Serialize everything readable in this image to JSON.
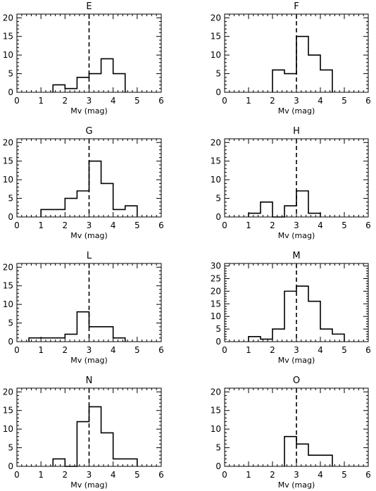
{
  "chart_data": [
    {
      "type": "bar",
      "title": "E",
      "xlabel": "Mv (mag)",
      "ylabel": "",
      "xlim": [
        0,
        6
      ],
      "ylim": [
        0,
        21
      ],
      "xticks": [
        0,
        1,
        2,
        3,
        4,
        5,
        6
      ],
      "yticks": [
        0,
        5,
        10,
        15,
        20
      ],
      "bin_width": 0.5,
      "bin_starts": [
        1.5,
        2.0,
        2.5,
        3.0,
        3.5,
        4.0
      ],
      "values": [
        2,
        1,
        4,
        5,
        9,
        5
      ],
      "reference_line_x": 3
    },
    {
      "type": "bar",
      "title": "F",
      "xlabel": "Mv (mag)",
      "ylabel": "",
      "xlim": [
        0,
        6
      ],
      "ylim": [
        0,
        21
      ],
      "xticks": [
        0,
        1,
        2,
        3,
        4,
        5,
        6
      ],
      "yticks": [
        0,
        5,
        10,
        15,
        20
      ],
      "bin_width": 0.5,
      "bin_starts": [
        2.0,
        2.5,
        3.0,
        3.5,
        4.0
      ],
      "values": [
        6,
        5,
        15,
        10,
        6
      ],
      "reference_line_x": 3
    },
    {
      "type": "bar",
      "title": "G",
      "xlabel": "Mv (mag)",
      "ylabel": "",
      "xlim": [
        0,
        6
      ],
      "ylim": [
        0,
        21
      ],
      "xticks": [
        0,
        1,
        2,
        3,
        4,
        5,
        6
      ],
      "yticks": [
        0,
        5,
        10,
        15,
        20
      ],
      "bin_width": 0.5,
      "bin_starts": [
        1.0,
        1.5,
        2.0,
        2.5,
        3.0,
        3.5,
        4.0,
        4.5
      ],
      "values": [
        2,
        2,
        5,
        7,
        15,
        9,
        2,
        3
      ],
      "reference_line_x": 3
    },
    {
      "type": "bar",
      "title": "H",
      "xlabel": "Mv (mag)",
      "ylabel": "",
      "xlim": [
        0,
        6
      ],
      "ylim": [
        0,
        21
      ],
      "xticks": [
        0,
        1,
        2,
        3,
        4,
        5,
        6
      ],
      "yticks": [
        0,
        5,
        10,
        15,
        20
      ],
      "bin_width": 0.5,
      "bin_starts": [
        1.0,
        1.5,
        2.0,
        2.5,
        3.0,
        3.5
      ],
      "values": [
        1,
        4,
        0,
        3,
        7,
        1
      ],
      "reference_line_x": 3
    },
    {
      "type": "bar",
      "title": "L",
      "xlabel": "Mv (mag)",
      "ylabel": "",
      "xlim": [
        0,
        6
      ],
      "ylim": [
        0,
        21
      ],
      "xticks": [
        0,
        1,
        2,
        3,
        4,
        5,
        6
      ],
      "yticks": [
        0,
        5,
        10,
        15,
        20
      ],
      "bin_width": 0.5,
      "bin_starts": [
        0.5,
        1.0,
        1.5,
        2.0,
        2.5,
        3.0,
        3.5,
        4.0
      ],
      "values": [
        1,
        1,
        1,
        2,
        8,
        4,
        4,
        1
      ],
      "reference_line_x": 3
    },
    {
      "type": "bar",
      "title": "M",
      "xlabel": "Mv (mag)",
      "ylabel": "",
      "xlim": [
        0,
        6
      ],
      "ylim": [
        0,
        31
      ],
      "xticks": [
        0,
        1,
        2,
        3,
        4,
        5,
        6
      ],
      "yticks": [
        0,
        5,
        10,
        15,
        20,
        25,
        30
      ],
      "bin_width": 0.5,
      "bin_starts": [
        1.0,
        1.5,
        2.0,
        2.5,
        3.0,
        3.5,
        4.0,
        4.5
      ],
      "values": [
        2,
        1,
        5,
        20,
        22,
        16,
        5,
        3
      ],
      "reference_line_x": 3
    },
    {
      "type": "bar",
      "title": "N",
      "xlabel": "Mv (mag)",
      "ylabel": "",
      "xlim": [
        0,
        6
      ],
      "ylim": [
        0,
        21
      ],
      "xticks": [
        0,
        1,
        2,
        3,
        4,
        5,
        6
      ],
      "yticks": [
        0,
        5,
        10,
        15,
        20
      ],
      "bin_width": 0.5,
      "bin_starts": [
        1.5,
        2.0,
        2.5,
        3.0,
        3.5,
        4.0,
        4.5
      ],
      "values": [
        2,
        0,
        12,
        16,
        9,
        2,
        2
      ],
      "reference_line_x": 3
    },
    {
      "type": "bar",
      "title": "O",
      "xlabel": "Mv (mag)",
      "ylabel": "",
      "xlim": [
        0,
        6
      ],
      "ylim": [
        0,
        21
      ],
      "xticks": [
        0,
        1,
        2,
        3,
        4,
        5,
        6
      ],
      "yticks": [
        0,
        5,
        10,
        15,
        20
      ],
      "bin_width": 0.5,
      "bin_starts": [
        2.5,
        3.0,
        3.5,
        4.0
      ],
      "values": [
        8,
        6,
        3,
        3
      ],
      "reference_line_x": 3
    }
  ]
}
